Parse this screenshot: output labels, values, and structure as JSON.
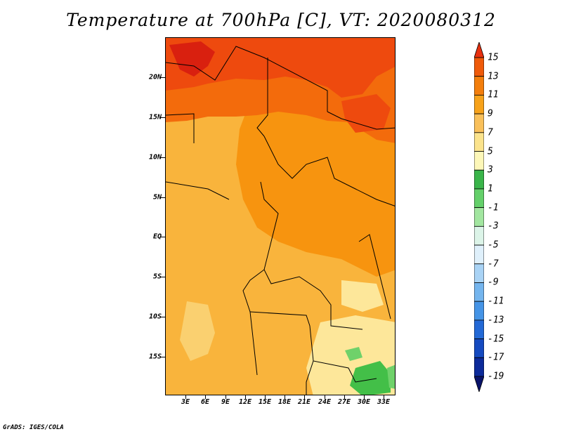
{
  "title": "Temperature at 700hPa [C], VT: 2020080312",
  "credit": "GrADS: IGES/COLA",
  "lat_labels": [
    "20N",
    "15N",
    "10N",
    "5N",
    "EQ",
    "5S",
    "10S",
    "15S"
  ],
  "lon_labels": [
    "3E",
    "6E",
    "9E",
    "12E",
    "15E",
    "18E",
    "21E",
    "24E",
    "27E",
    "30E",
    "33E"
  ],
  "colorbar": {
    "labels": [
      "15",
      "13",
      "11",
      "9",
      "7",
      "5",
      "3",
      "1",
      "-1",
      "-3",
      "-5",
      "-7",
      "-9",
      "-11",
      "-13",
      "-15",
      "-17",
      "-19"
    ],
    "colors": [
      "#e8300f",
      "#ef5a0a",
      "#f37e0c",
      "#f7a21a",
      "#f9c05a",
      "#fbe38c",
      "#fdf7b8",
      "#3ab54a",
      "#64d06a",
      "#a2e6a0",
      "#dcf4e8",
      "#dff0fb",
      "#a9d3f5",
      "#74b5ee",
      "#4594e6",
      "#2369d6",
      "#154ac0",
      "#0c2a9a",
      "#09136a"
    ]
  },
  "colors": {
    "deep_red": "#d9200f",
    "red": "#ee4a0e",
    "orange_red": "#f36b0c",
    "orange": "#f7940f",
    "light_orange": "#f9b43c",
    "pale_orange": "#fad070",
    "yellow": "#fde79a",
    "green": "#43bf48",
    "light_green": "#6fd16a"
  }
}
